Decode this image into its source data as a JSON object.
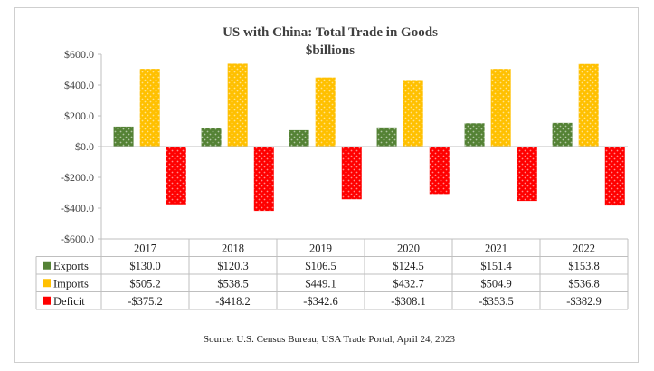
{
  "chart_data": {
    "type": "bar",
    "title": "US with  China: Total Trade in Goods",
    "subtitle": "$billions",
    "categories": [
      "2017",
      "2018",
      "2019",
      "2020",
      "2021",
      "2022"
    ],
    "ylim": [
      -600,
      600
    ],
    "yticks": [
      "$600.0",
      "$400.0",
      "$200.0",
      "$0.0",
      "-$200.0",
      "-$400.0",
      "-$600.0"
    ],
    "ytick_values": [
      600,
      400,
      200,
      0,
      -200,
      -400,
      -600
    ],
    "grid": false,
    "legend": "data-table",
    "series": [
      {
        "name": "Exports",
        "color": "#548235",
        "values": [
          130.0,
          120.3,
          106.5,
          124.5,
          151.4,
          153.8
        ],
        "labels": [
          "$130.0",
          "$120.3",
          "$106.5",
          "$124.5",
          "$151.4",
          "$153.8"
        ]
      },
      {
        "name": "Imports",
        "color": "#ffc000",
        "values": [
          505.2,
          538.5,
          449.1,
          432.7,
          504.9,
          536.8
        ],
        "labels": [
          "$505.2",
          "$538.5",
          "$449.1",
          "$432.7",
          "$504.9",
          "$536.8"
        ]
      },
      {
        "name": "Deficit",
        "color": "#ff0000",
        "values": [
          -375.2,
          -418.2,
          -342.6,
          -308.1,
          -353.5,
          -382.9
        ],
        "labels": [
          "-$375.2",
          "-$418.2",
          "-$342.6",
          "-$308.1",
          "-$353.5",
          "-$382.9"
        ]
      }
    ]
  },
  "source": "Source: U.S. Census Bureau, USA Trade Portal, April 24, 2023"
}
